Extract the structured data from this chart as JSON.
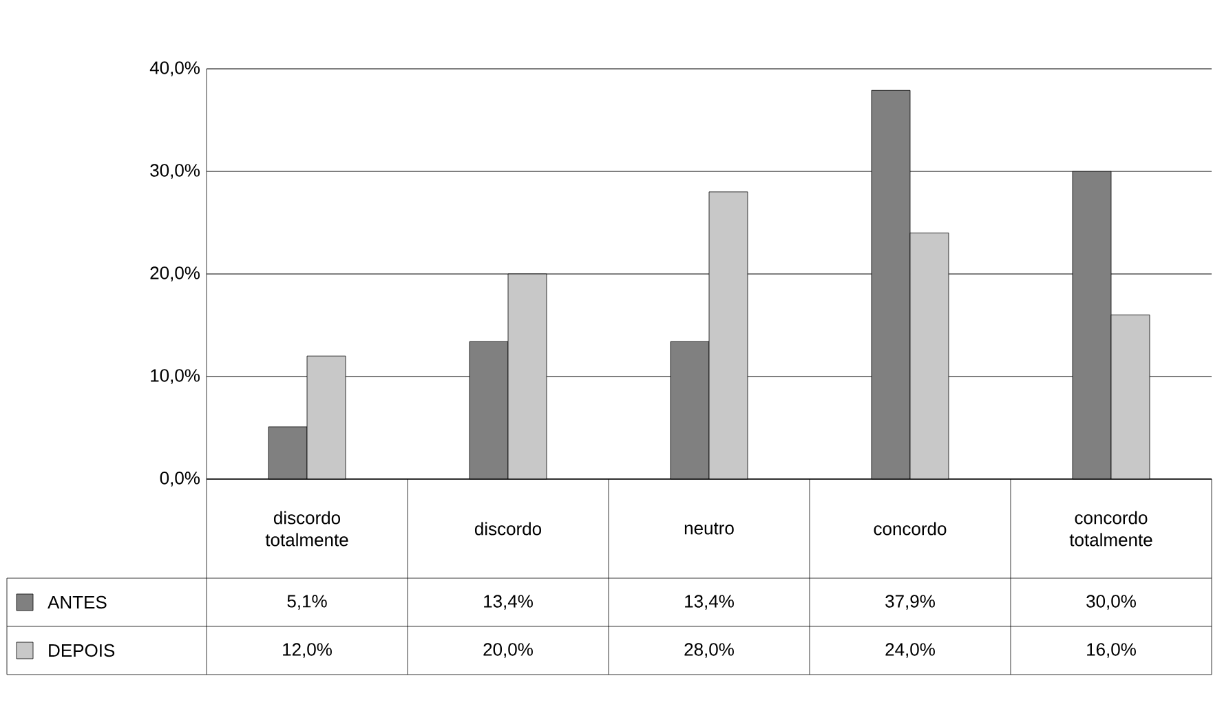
{
  "chart_data": {
    "type": "bar",
    "categories": [
      "discordo totalmente",
      "discordo",
      "neutro",
      "concordo",
      "concordo totalmente"
    ],
    "series": [
      {
        "name": "ANTES",
        "color": "#808080",
        "values": [
          5.1,
          13.4,
          13.4,
          37.9,
          30.0
        ],
        "value_labels": [
          "5,1%",
          "13,4%",
          "13,4%",
          "37,9%",
          "30,0%"
        ]
      },
      {
        "name": "DEPOIS",
        "color": "#c8c8c8",
        "values": [
          12.0,
          20.0,
          28.0,
          24.0,
          16.0
        ],
        "value_labels": [
          "12,0%",
          "20,0%",
          "28,0%",
          "24,0%",
          "16,0%"
        ]
      }
    ],
    "ylim": [
      0,
      40
    ],
    "yticks": [
      {
        "value": 0,
        "label": "0,0%"
      },
      {
        "value": 10,
        "label": "10,0%"
      },
      {
        "value": 20,
        "label": "20,0%"
      },
      {
        "value": 30,
        "label": "30,0%"
      },
      {
        "value": 40,
        "label": "40,0%"
      }
    ],
    "grid": "y",
    "legend": "bottom"
  }
}
